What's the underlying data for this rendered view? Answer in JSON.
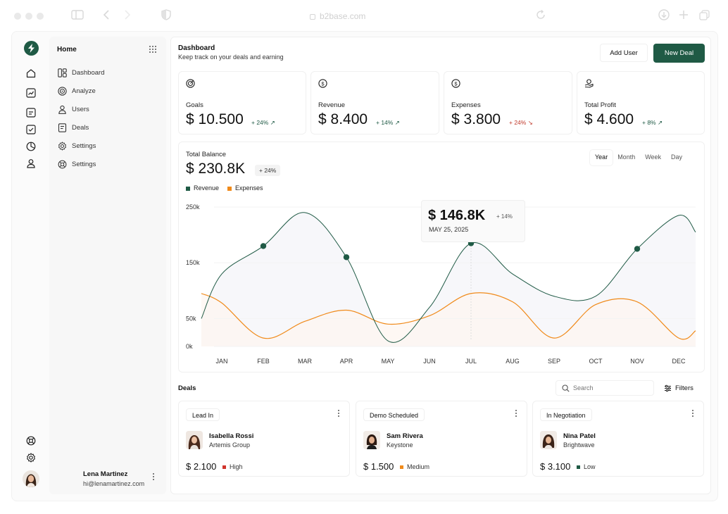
{
  "browser": {
    "url": "b2base.com"
  },
  "sidebar": {
    "title": "Home",
    "items": [
      {
        "label": "Dashboard",
        "icon": "layout-icon"
      },
      {
        "label": "Analyze",
        "icon": "target-icon"
      },
      {
        "label": "Users",
        "icon": "user-icon"
      },
      {
        "label": "Deals",
        "icon": "document-icon"
      },
      {
        "label": "Settings",
        "icon": "gear-icon"
      },
      {
        "label": "Settings",
        "icon": "lifebuoy-icon"
      }
    ],
    "user": {
      "name": "Lena Martinez",
      "email": "hi@lenamartinez.com"
    }
  },
  "header": {
    "title": "Dashboard",
    "subtitle": "Keep track on your deals and earning",
    "add_user_label": "Add User",
    "new_deal_label": "New Deal"
  },
  "kpis": [
    {
      "label": "Goals",
      "value": "$ 10.500",
      "delta": "+ 24%",
      "trend": "up",
      "icon": "target-icon"
    },
    {
      "label": "Revenue",
      "value": "$ 8.400",
      "delta": "+ 14%",
      "trend": "up",
      "icon": "dollar-coin-icon"
    },
    {
      "label": "Expenses",
      "value": "$ 3.800",
      "delta": "+ 24%",
      "trend": "down",
      "icon": "dollar-down-icon"
    },
    {
      "label": "Total Profit",
      "value": "$ 4.600",
      "delta": "+ 8%",
      "trend": "up",
      "icon": "hand-coins-icon"
    }
  ],
  "balance": {
    "label": "Total Balance",
    "value": "$ 230.8K",
    "delta": "+ 24%",
    "periods": [
      "Year",
      "Month",
      "Week",
      "Day"
    ],
    "active_period": "Year",
    "tooltip": {
      "value": "$ 146.8K",
      "delta": "+ 14%",
      "date": "MAY 25, 2025"
    }
  },
  "chart_data": {
    "type": "line",
    "categories": [
      "JAN",
      "FEB",
      "MAR",
      "APR",
      "MAY",
      "JUN",
      "JUL",
      "AUG",
      "SEP",
      "OCT",
      "NOV",
      "DEC"
    ],
    "y_ticks": [
      "250k",
      "150k",
      "50k",
      "0k"
    ],
    "series": [
      {
        "name": "Revenue",
        "color": "#1f5a45",
        "values": [
          130,
          180,
          240,
          160,
          10,
          70,
          185,
          130,
          90,
          90,
          175,
          235
        ],
        "markers": [
          1,
          3,
          6,
          10
        ]
      },
      {
        "name": "Expenses",
        "color": "#f08a1a",
        "values": [
          78,
          15,
          45,
          65,
          40,
          55,
          95,
          80,
          15,
          75,
          80,
          15
        ]
      }
    ],
    "legend": "top-left",
    "grid": false
  },
  "deals": {
    "title": "Deals",
    "search_placeholder": "Search",
    "filters_label": "Filters",
    "items": [
      {
        "stage": "Lead In",
        "name": "Isabella Rossi",
        "company": "Artemis Group",
        "amount": "$ 2.100",
        "priority": "High",
        "priority_color": "#d0342c"
      },
      {
        "stage": "Demo Scheduled",
        "name": "Sam Rivera",
        "company": "Keystone",
        "amount": "$ 1.500",
        "priority": "Medium",
        "priority_color": "#f08a1a"
      },
      {
        "stage": "In Negotiation",
        "name": "Nina Patel",
        "company": "Brightwave",
        "amount": "$ 3.100",
        "priority": "Low",
        "priority_color": "#1f5a45"
      }
    ]
  }
}
